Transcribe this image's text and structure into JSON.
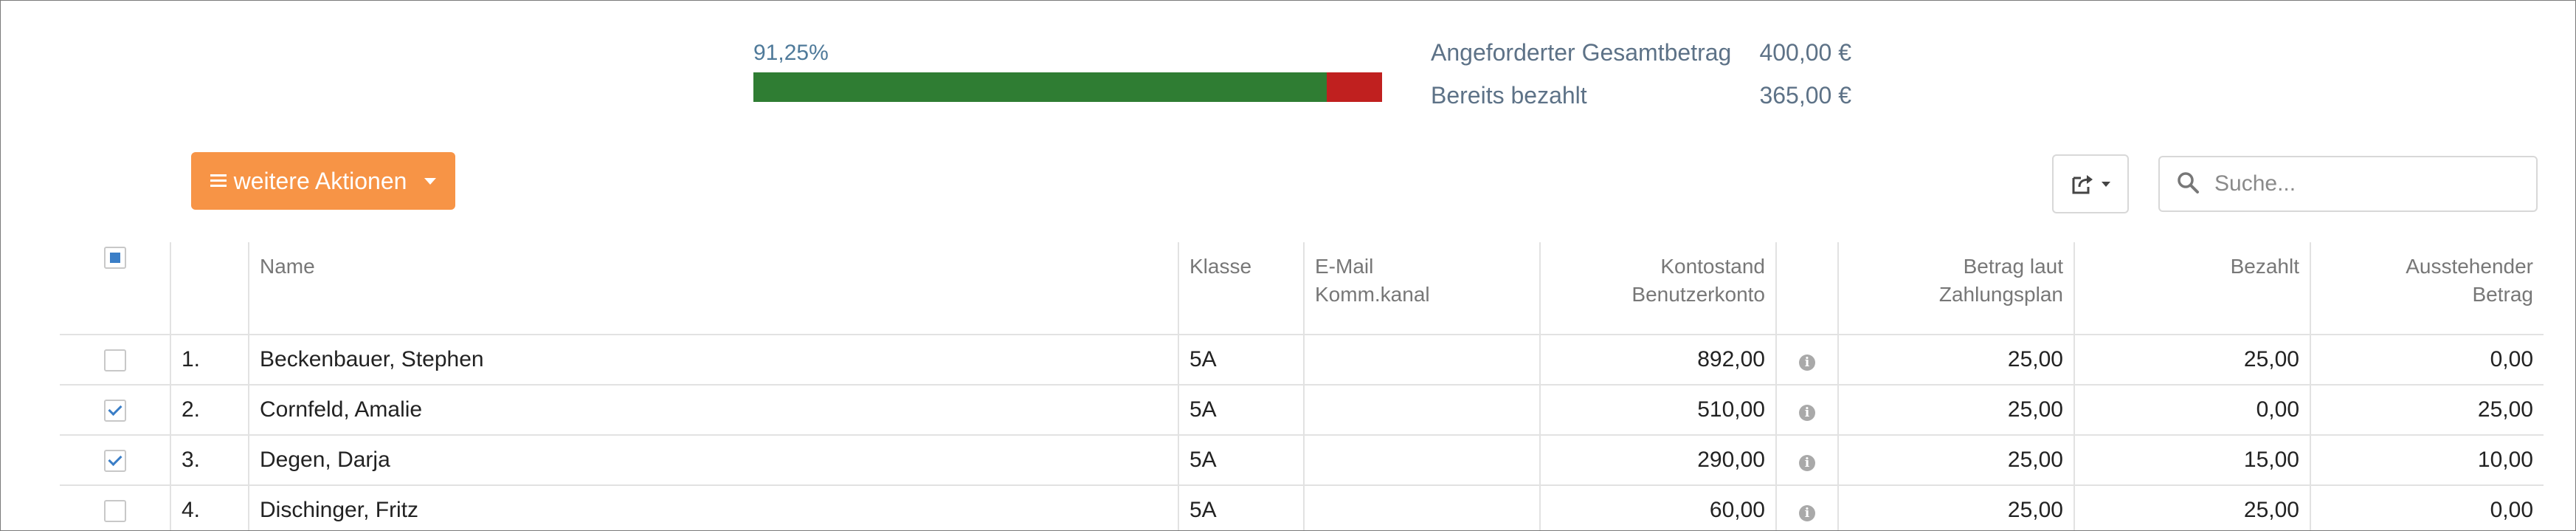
{
  "summary": {
    "percent_label": "91,25%",
    "progress_fraction": 0.9125,
    "requested_label": "Angeforderter Gesamtbetrag",
    "requested_value": "400,00 €",
    "paid_label": "Bereits bezahlt",
    "paid_value": "365,00 €"
  },
  "toolbar": {
    "actions_label": "weitere Aktionen",
    "actions_icon": "hamburger-icon",
    "export_icon": "export-icon",
    "search_placeholder": "Suche...",
    "search_value": ""
  },
  "colors": {
    "accent": "#f79446",
    "bar_paid": "#2f7d33",
    "bar_open": "#c0201f",
    "paid_ok": "#2f7fc8",
    "paid_missing": "#e2141b"
  },
  "table": {
    "headers": {
      "name": "Name",
      "klasse": "Klasse",
      "email_line1": "E-Mail",
      "email_line2": "Komm.kanal",
      "konto_line1": "Kontostand",
      "konto_line2": "Benutzerkonto",
      "betrag_line1": "Betrag laut",
      "betrag_line2": "Zahlungsplan",
      "bezahlt": "Bezahlt",
      "ausstehend_line1": "Ausstehender",
      "ausstehend_line2": "Betrag"
    },
    "rows": [
      {
        "num": "1.",
        "name": "Beckenbauer, Stephen",
        "klasse": "5A",
        "email": "",
        "konto": "892,00",
        "betrag": "25,00",
        "bezahlt": "25,00",
        "ausstehend": "0,00",
        "checked": false,
        "fully_paid": true
      },
      {
        "num": "2.",
        "name": "Cornfeld, Amalie",
        "klasse": "5A",
        "email": "",
        "konto": "510,00",
        "betrag": "25,00",
        "bezahlt": "0,00",
        "ausstehend": "25,00",
        "checked": true,
        "fully_paid": false
      },
      {
        "num": "3.",
        "name": "Degen, Darja",
        "klasse": "5A",
        "email": "",
        "konto": "290,00",
        "betrag": "25,00",
        "bezahlt": "15,00",
        "ausstehend": "10,00",
        "checked": true,
        "fully_paid": false
      },
      {
        "num": "4.",
        "name": "Dischinger, Fritz",
        "klasse": "5A",
        "email": "",
        "konto": "60,00",
        "betrag": "25,00",
        "bezahlt": "25,00",
        "ausstehend": "0,00",
        "checked": false,
        "fully_paid": true
      }
    ]
  }
}
